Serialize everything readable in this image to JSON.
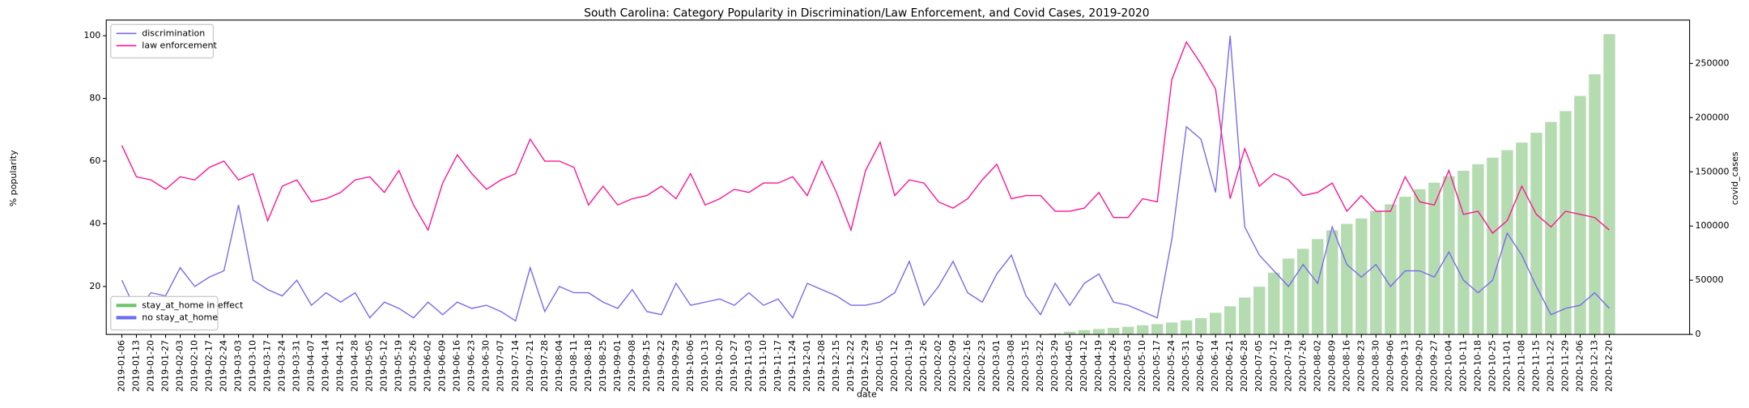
{
  "chart_data": {
    "type": "line",
    "title": "South Carolina: Category Popularity in Discrimination/Law Enforcement, and Covid Cases, 2019-2020",
    "x_label": "date",
    "y_label": "% popularity",
    "y2_label": "covid_cases",
    "categories": [
      "2019-01-06",
      "2019-01-13",
      "2019-01-20",
      "2019-01-27",
      "2019-02-03",
      "2019-02-10",
      "2019-02-17",
      "2019-02-24",
      "2019-03-03",
      "2019-03-10",
      "2019-03-17",
      "2019-03-24",
      "2019-03-31",
      "2019-04-07",
      "2019-04-14",
      "2019-04-21",
      "2019-04-28",
      "2019-05-05",
      "2019-05-12",
      "2019-05-19",
      "2019-05-26",
      "2019-06-02",
      "2019-06-09",
      "2019-06-16",
      "2019-06-23",
      "2019-06-30",
      "2019-07-07",
      "2019-07-14",
      "2019-07-21",
      "2019-07-28",
      "2019-08-04",
      "2019-08-11",
      "2019-08-18",
      "2019-08-25",
      "2019-09-01",
      "2019-09-08",
      "2019-09-15",
      "2019-09-22",
      "2019-09-29",
      "2019-10-06",
      "2019-10-13",
      "2019-10-20",
      "2019-10-27",
      "2019-11-03",
      "2019-11-10",
      "2019-11-17",
      "2019-11-24",
      "2019-12-01",
      "2019-12-08",
      "2019-12-15",
      "2019-12-22",
      "2019-12-29",
      "2020-01-05",
      "2020-01-12",
      "2020-01-19",
      "2020-01-26",
      "2020-02-02",
      "2020-02-09",
      "2020-02-16",
      "2020-02-23",
      "2020-03-01",
      "2020-03-08",
      "2020-03-15",
      "2020-03-22",
      "2020-03-29",
      "2020-04-05",
      "2020-04-12",
      "2020-04-19",
      "2020-04-26",
      "2020-05-03",
      "2020-05-10",
      "2020-05-17",
      "2020-05-24",
      "2020-05-31",
      "2020-06-07",
      "2020-06-14",
      "2020-06-21",
      "2020-06-28",
      "2020-07-05",
      "2020-07-12",
      "2020-07-19",
      "2020-07-26",
      "2020-08-02",
      "2020-08-09",
      "2020-08-16",
      "2020-08-23",
      "2020-08-30",
      "2020-09-06",
      "2020-09-13",
      "2020-09-20",
      "2020-09-27",
      "2020-10-04",
      "2020-10-11",
      "2020-10-18",
      "2020-10-25",
      "2020-11-01",
      "2020-11-08",
      "2020-11-15",
      "2020-11-22",
      "2020-11-29",
      "2020-12-06",
      "2020-12-13",
      "2020-12-20"
    ],
    "series": [
      {
        "name": "discrimination",
        "color": "#7b68ee",
        "values": [
          22,
          12,
          18,
          17,
          26,
          20,
          23,
          25,
          46,
          22,
          19,
          17,
          22,
          14,
          18,
          15,
          18,
          10,
          15,
          13,
          10,
          15,
          11,
          15,
          13,
          14,
          12,
          9,
          26,
          12,
          20,
          18,
          18,
          15,
          13,
          19,
          12,
          11,
          21,
          14,
          15,
          16,
          14,
          18,
          14,
          16,
          10,
          21,
          19,
          17,
          14,
          14,
          15,
          18,
          28,
          14,
          20,
          28,
          18,
          15,
          24,
          30,
          17,
          11,
          21,
          14,
          21,
          24,
          15,
          14,
          12,
          10,
          35,
          71,
          67,
          50,
          100,
          39,
          30,
          25,
          20,
          27,
          21,
          39,
          27,
          23,
          27,
          20,
          25,
          25,
          23,
          31,
          22,
          18,
          22,
          37,
          30,
          20,
          11,
          13,
          14,
          18,
          13
        ]
      },
      {
        "name": "law enforcement",
        "color": "#ff1493",
        "values": [
          65,
          55,
          54,
          51,
          55,
          54,
          58,
          60,
          54,
          56,
          41,
          52,
          54,
          47,
          48,
          50,
          54,
          55,
          50,
          57,
          46,
          38,
          53,
          62,
          56,
          51,
          54,
          56,
          67,
          60,
          60,
          58,
          46,
          52,
          46,
          48,
          49,
          52,
          48,
          56,
          46,
          48,
          51,
          50,
          53,
          53,
          55,
          49,
          60,
          50,
          38,
          57,
          66,
          49,
          54,
          53,
          47,
          45,
          48,
          54,
          59,
          48,
          49,
          49,
          44,
          44,
          45,
          50,
          42,
          42,
          48,
          47,
          86,
          98,
          91,
          83,
          48,
          64,
          52,
          56,
          54,
          49,
          50,
          53,
          44,
          49,
          44,
          44,
          55,
          47,
          46,
          57,
          43,
          44,
          37,
          41,
          52,
          43,
          39,
          44,
          43,
          42,
          38
        ]
      },
      {
        "name": "covid_cases",
        "type": "bar",
        "axis": "y2",
        "color": "#b4dcb0",
        "values": [
          null,
          null,
          null,
          null,
          null,
          null,
          null,
          null,
          null,
          null,
          null,
          null,
          null,
          null,
          null,
          null,
          null,
          null,
          null,
          null,
          null,
          null,
          null,
          null,
          null,
          null,
          null,
          null,
          null,
          null,
          null,
          null,
          null,
          null,
          null,
          null,
          null,
          null,
          null,
          null,
          null,
          null,
          null,
          null,
          null,
          null,
          null,
          null,
          null,
          null,
          null,
          null,
          null,
          null,
          null,
          null,
          null,
          null,
          null,
          null,
          null,
          null,
          null,
          null,
          1000,
          2500,
          4000,
          5000,
          6000,
          7000,
          8500,
          9500,
          11000,
          13000,
          15000,
          20000,
          26000,
          34000,
          44000,
          57000,
          70000,
          79000,
          88000,
          96000,
          102000,
          107000,
          114000,
          120000,
          127000,
          134000,
          140000,
          146000,
          151000,
          157000,
          163000,
          170000,
          177000,
          186000,
          196000,
          206000,
          220000,
          240000,
          277000
        ]
      }
    ],
    "status_legend": [
      {
        "name": "stay_at_home in effect",
        "color": "#6cc46c"
      },
      {
        "name": "no stay_at_home",
        "color": "#6b6bf5"
      }
    ],
    "ylim": [
      4.7,
      105
    ],
    "yticks": [
      20,
      40,
      60,
      80,
      100
    ],
    "y2lim": [
      0,
      290000
    ],
    "y2ticks": [
      0,
      50000,
      100000,
      150000,
      200000,
      250000
    ]
  }
}
